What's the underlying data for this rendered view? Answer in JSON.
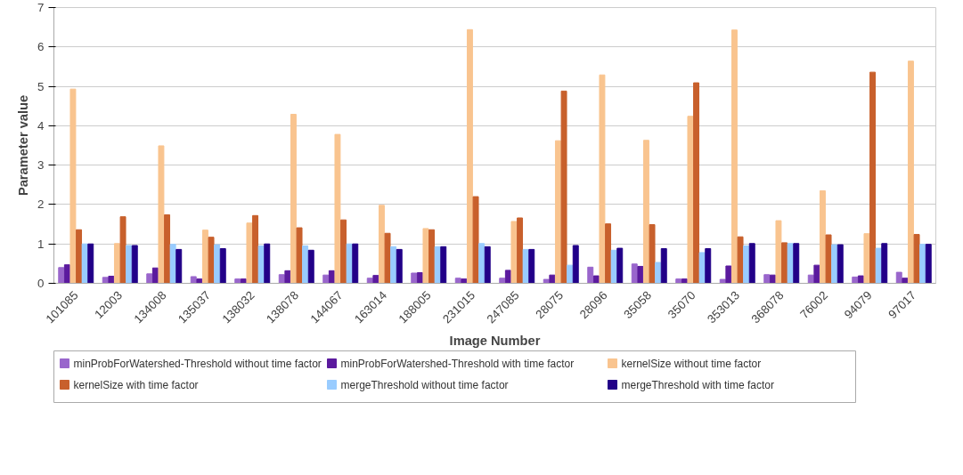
{
  "chart_data": {
    "type": "bar",
    "xlabel": "Image Number",
    "ylabel": "Parameter value",
    "categories": [
      "101085",
      "12003",
      "134008",
      "135037",
      "138032",
      "138078",
      "144067",
      "163014",
      "188005",
      "231015",
      "247085",
      "28075",
      "28096",
      "35058",
      "35070",
      "353013",
      "368078",
      "76002",
      "94079",
      "97017"
    ],
    "series": [
      {
        "name": "minProbForWatershed-Threshold without time factor",
        "color": "#9966cc",
        "values": [
          0.4,
          0.15,
          0.24,
          0.17,
          0.11,
          0.22,
          0.21,
          0.13,
          0.26,
          0.13,
          0.13,
          0.1,
          0.41,
          0.49,
          0.11,
          0.1,
          0.22,
          0.21,
          0.16,
          0.28
        ]
      },
      {
        "name": "minProbForWatershed-Threshold with time factor",
        "color": "#5b1a9e",
        "values": [
          0.47,
          0.18,
          0.39,
          0.11,
          0.11,
          0.32,
          0.32,
          0.2,
          0.27,
          0.11,
          0.33,
          0.21,
          0.19,
          0.43,
          0.11,
          0.44,
          0.21,
          0.46,
          0.19,
          0.13
        ]
      },
      {
        "name": "kernelSize without time factor",
        "color": "#f9c48f",
        "values": [
          4.93,
          1.01,
          3.49,
          1.35,
          1.53,
          4.29,
          3.78,
          1.98,
          1.39,
          6.44,
          1.57,
          3.62,
          5.29,
          3.63,
          4.24,
          6.43,
          1.59,
          2.35,
          1.26,
          5.64
        ]
      },
      {
        "name": "kernelSize with time factor",
        "color": "#c8602c",
        "values": [
          1.36,
          1.69,
          1.74,
          1.17,
          1.72,
          1.41,
          1.61,
          1.27,
          1.36,
          2.2,
          1.66,
          4.88,
          1.51,
          1.49,
          5.09,
          1.18,
          1.03,
          1.23,
          5.36,
          1.24
        ]
      },
      {
        "name": "mergeThreshold without time factor",
        "color": "#99ccff",
        "values": [
          1.0,
          0.96,
          0.99,
          0.98,
          0.95,
          0.95,
          1.0,
          0.93,
          0.93,
          1.01,
          0.86,
          0.46,
          0.84,
          0.53,
          0.78,
          0.95,
          1.01,
          0.98,
          0.89,
          0.99
        ]
      },
      {
        "name": "mergeThreshold with time factor",
        "color": "#220088",
        "values": [
          1.0,
          0.96,
          0.86,
          0.88,
          1.0,
          0.84,
          1.0,
          0.86,
          0.93,
          0.93,
          0.86,
          0.96,
          0.89,
          0.88,
          0.88,
          1.01,
          1.01,
          0.98,
          1.01,
          0.99
        ]
      }
    ],
    "ylim": [
      0,
      7
    ],
    "yticks": [
      0,
      1,
      2,
      3,
      4,
      5,
      6,
      7
    ],
    "grid": "y",
    "legend": "bottom"
  }
}
